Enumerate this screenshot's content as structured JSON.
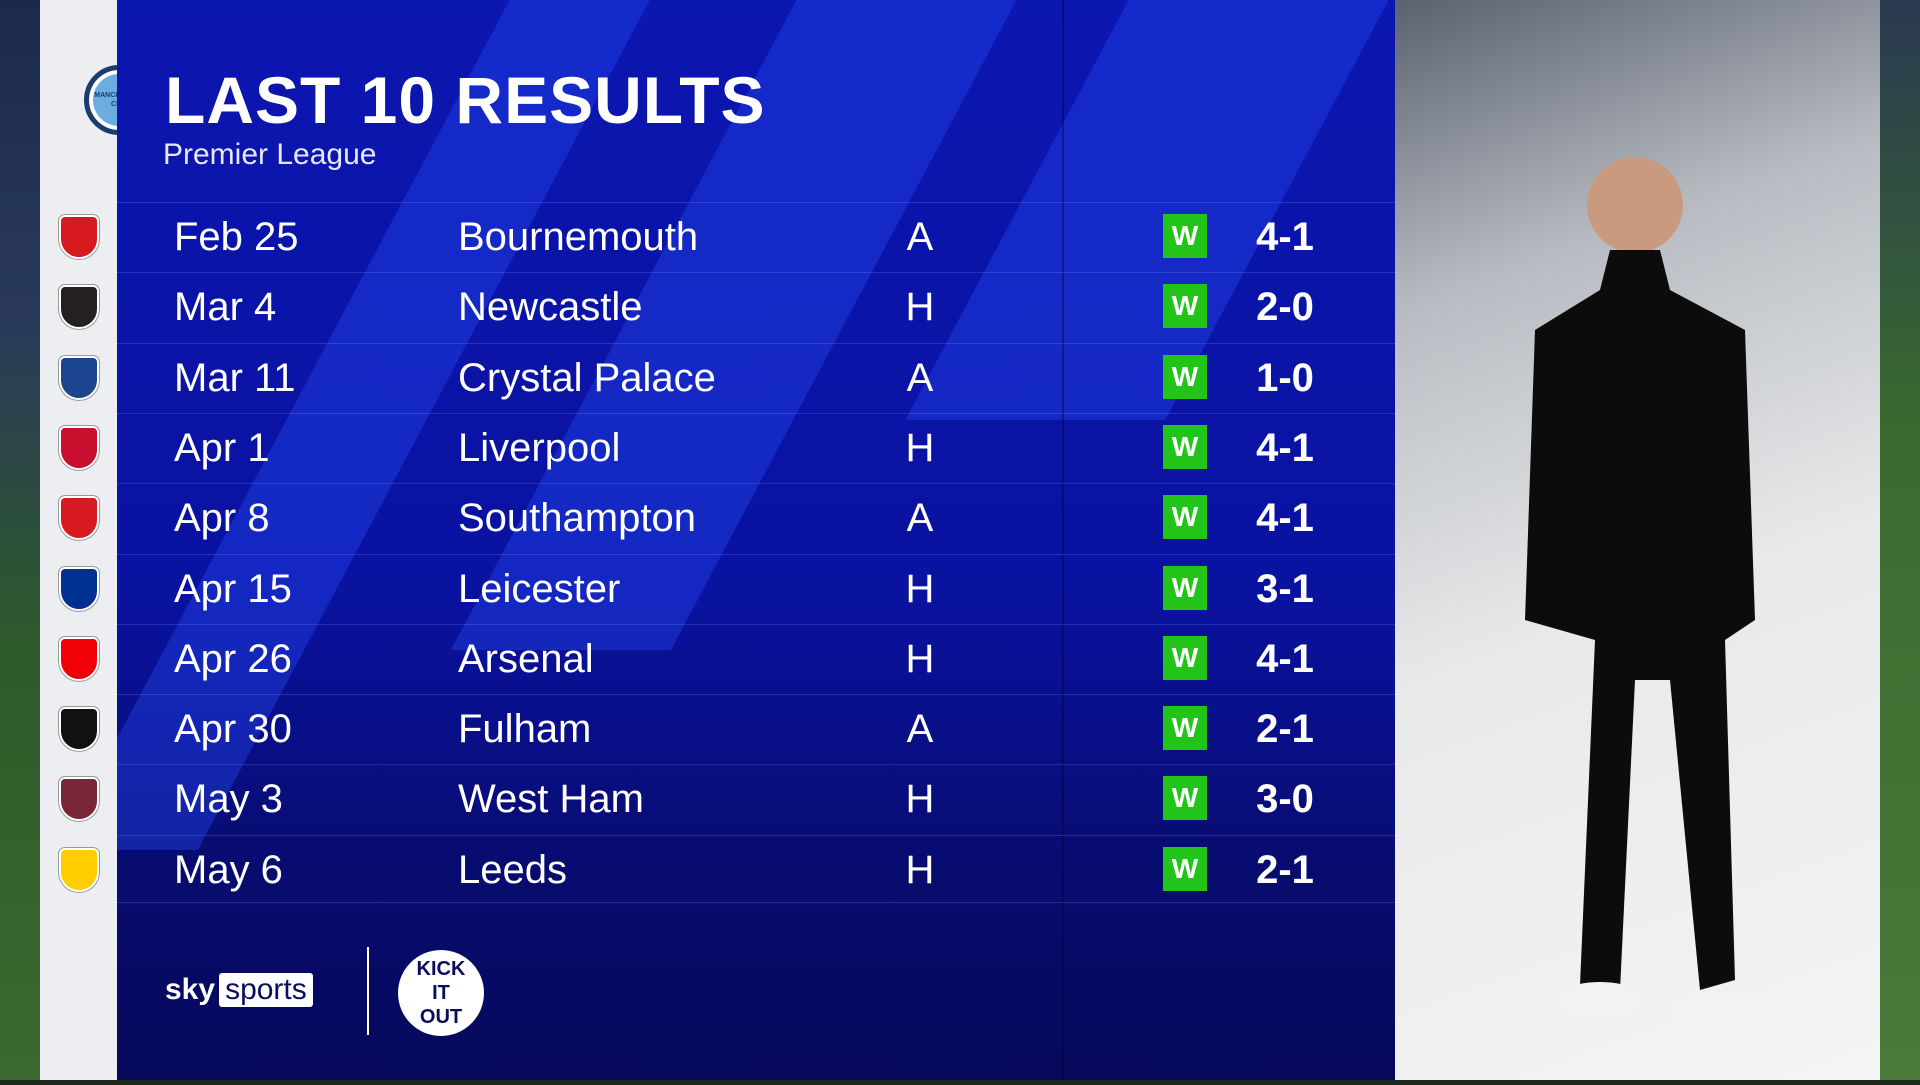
{
  "header": {
    "title": "LAST 10 RESULTS",
    "subtitle": "Premier League",
    "team": "Manchester City"
  },
  "colors": {
    "panel": "#0c16b0",
    "win": "#22c41a"
  },
  "results": [
    {
      "date": "Feb 25",
      "opponent": "Bournemouth",
      "venue": "A",
      "result": "W",
      "score": "4-1",
      "crest_color": "#d71920"
    },
    {
      "date": "Mar 4",
      "opponent": "Newcastle",
      "venue": "H",
      "result": "W",
      "score": "2-0",
      "crest_color": "#241f20"
    },
    {
      "date": "Mar 11",
      "opponent": "Crystal Palace",
      "venue": "A",
      "result": "W",
      "score": "1-0",
      "crest_color": "#1b458f"
    },
    {
      "date": "Apr 1",
      "opponent": "Liverpool",
      "venue": "H",
      "result": "W",
      "score": "4-1",
      "crest_color": "#c8102e"
    },
    {
      "date": "Apr 8",
      "opponent": "Southampton",
      "venue": "A",
      "result": "W",
      "score": "4-1",
      "crest_color": "#d71920"
    },
    {
      "date": "Apr 15",
      "opponent": "Leicester",
      "venue": "H",
      "result": "W",
      "score": "3-1",
      "crest_color": "#003090"
    },
    {
      "date": "Apr 26",
      "opponent": "Arsenal",
      "venue": "H",
      "result": "W",
      "score": "4-1",
      "crest_color": "#ef0107"
    },
    {
      "date": "Apr 30",
      "opponent": "Fulham",
      "venue": "A",
      "result": "W",
      "score": "2-1",
      "crest_color": "#111111"
    },
    {
      "date": "May 3",
      "opponent": "West Ham",
      "venue": "H",
      "result": "W",
      "score": "3-0",
      "crest_color": "#7a263a"
    },
    {
      "date": "May 6",
      "opponent": "Leeds",
      "venue": "H",
      "result": "W",
      "score": "2-1",
      "crest_color": "#ffcd00"
    }
  ],
  "footer": {
    "sky": "sky",
    "sports": "sports",
    "kickitout": "KICK IT OUT"
  }
}
